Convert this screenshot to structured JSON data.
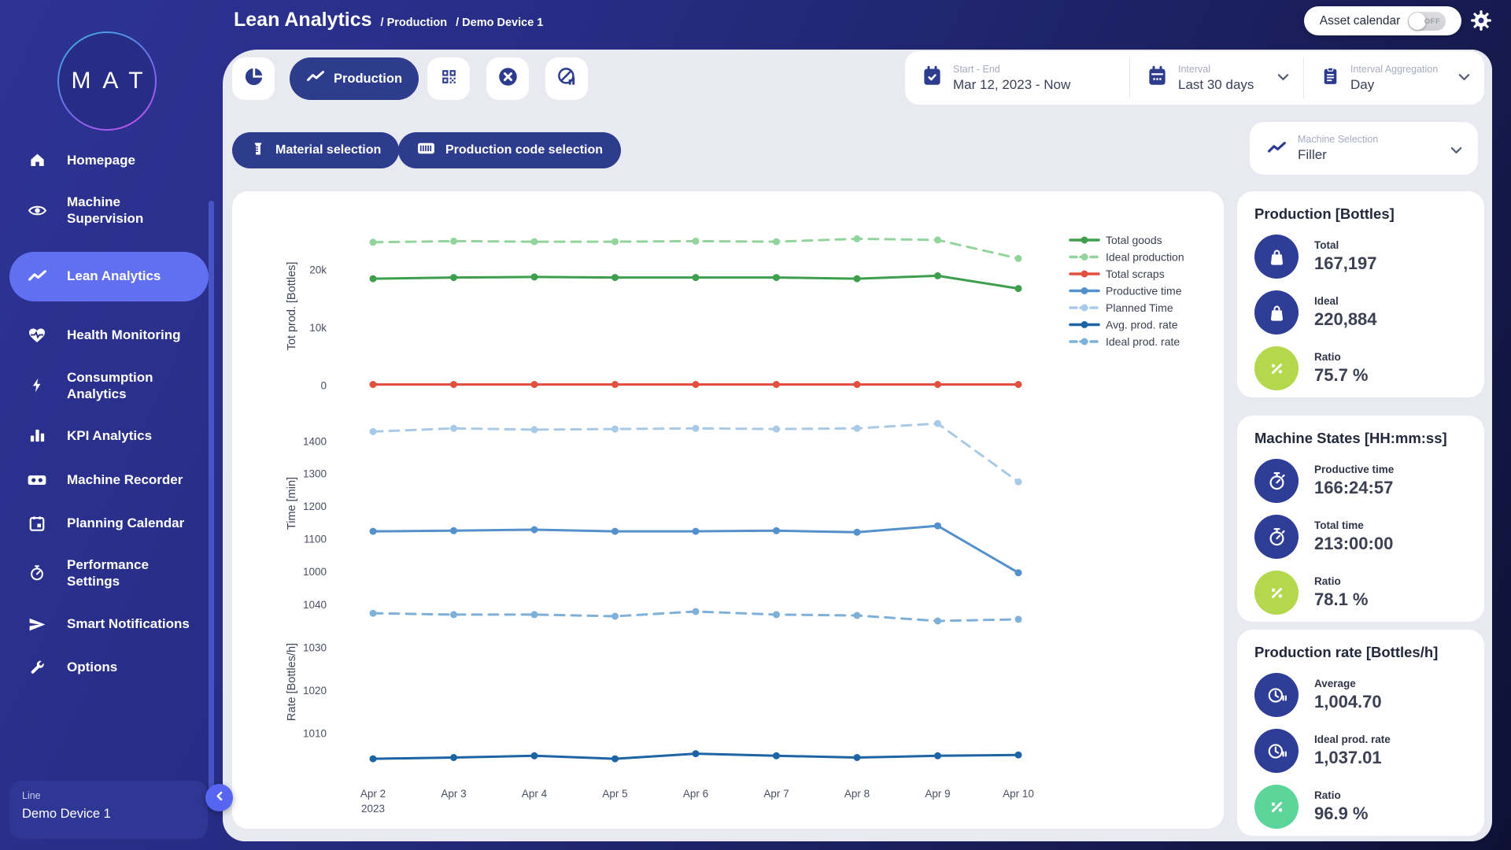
{
  "logo": {
    "text": "MAT"
  },
  "header": {
    "title": "Lean Analytics",
    "breadcrumbs": [
      "/ Production",
      "/ Demo Device 1"
    ],
    "asset_calendar": {
      "label": "Asset calendar",
      "state": "OFF"
    },
    "settings_icon": "gear"
  },
  "sidebar": {
    "items": [
      {
        "label": "Homepage",
        "icon": "home"
      },
      {
        "label": "Machine Supervision",
        "icon": "eye"
      },
      {
        "label": "Lean Analytics",
        "icon": "trend-line",
        "active": true
      },
      {
        "label": "Health Monitoring",
        "icon": "heart-pulse"
      },
      {
        "label": "Consumption Analytics",
        "icon": "bolt"
      },
      {
        "label": "KPI Analytics",
        "icon": "bar-chart"
      },
      {
        "label": "Machine Recorder",
        "icon": "recorder"
      },
      {
        "label": "Planning Calendar",
        "icon": "calendar"
      },
      {
        "label": "Performance Settings",
        "icon": "gauge"
      },
      {
        "label": "Smart Notifications",
        "icon": "send"
      },
      {
        "label": "Options",
        "icon": "wrench"
      }
    ]
  },
  "device_panel": {
    "label": "Line",
    "value": "Demo Device 1",
    "collapse_icon": "chevron-left"
  },
  "toolbar": {
    "tabs": [
      {
        "icon": "pie-chart"
      },
      {
        "icon": "trend-line-white",
        "label": "Production",
        "active": true
      },
      {
        "icon": "qr-code"
      },
      {
        "icon": "close-circle"
      },
      {
        "icon": "no-stats"
      }
    ]
  },
  "date_controls": [
    {
      "icon": "calendar-check",
      "label": "Start - End",
      "value": "Mar 12, 2023 - Now"
    },
    {
      "icon": "calendar-plain",
      "label": "Interval",
      "value": "Last 30 days",
      "chevron_icon": "chevron-down"
    },
    {
      "icon": "clipboard",
      "label": "Interval Aggregation",
      "value": "Day",
      "chevron_icon": "chevron-down"
    }
  ],
  "filters": [
    {
      "icon": "material",
      "label": "Material selection"
    },
    {
      "icon": "barcode",
      "label": "Production code selection"
    }
  ],
  "machine_selection": {
    "icon": "trend-line",
    "label": "Machine Selection",
    "value": "Filler",
    "chevron_icon": "chevron-down"
  },
  "right_panel": {
    "cards": [
      {
        "title": "Production [Bottles]",
        "rows": [
          {
            "icon": "bag",
            "label": "Total",
            "value": "167,197",
            "icon_bg": "#2e3d96"
          },
          {
            "icon": "bag",
            "label": "Ideal",
            "value": "220,884",
            "icon_bg": "#2e3d96"
          },
          {
            "icon": "percent",
            "label": "Ratio",
            "value": "75.7 %",
            "icon_bg": "#b3d84c"
          }
        ]
      },
      {
        "title": "Machine States [HH:mm:ss]",
        "rows": [
          {
            "icon": "stopwatch",
            "label": "Productive time",
            "value": "166:24:57",
            "icon_bg": "#2e3d96"
          },
          {
            "icon": "stopwatch",
            "label": "Total time",
            "value": "213:00:00",
            "icon_bg": "#2e3d96"
          },
          {
            "icon": "percent",
            "label": "Ratio",
            "value": "78.1 %",
            "icon_bg": "#b3d84c"
          }
        ]
      },
      {
        "title": "Production rate [Bottles/h]",
        "rows": [
          {
            "icon": "clock-pause",
            "label": "Average",
            "value": "1,004.70",
            "icon_bg": "#2e3d96"
          },
          {
            "icon": "clock-pause",
            "label": "Ideal prod. rate",
            "value": "1,037.01",
            "icon_bg": "#2e3d96"
          },
          {
            "icon": "percent",
            "label": "Ratio",
            "value": "96.9 %",
            "icon_bg": "#5cd59b"
          }
        ]
      }
    ]
  },
  "chart_data": {
    "type": "line",
    "categories": [
      "Apr 2",
      "Apr 3",
      "Apr 4",
      "Apr 5",
      "Apr 6",
      "Apr 7",
      "Apr 8",
      "Apr 9",
      "Apr 10"
    ],
    "x_sublabel": {
      "index": 0,
      "text": "2023"
    },
    "grid": false,
    "legend_position": "right",
    "legend": [
      {
        "label": "Total goods",
        "color": "#3d9e4e",
        "dash": false
      },
      {
        "label": "Ideal production",
        "color": "#93d39e",
        "dash": true
      },
      {
        "label": "Total scraps",
        "color": "#e2503f",
        "dash": false
      },
      {
        "label": "Productive time",
        "color": "#5491cc",
        "dash": false
      },
      {
        "label": "Planned Time",
        "color": "#a9cae6",
        "dash": true
      },
      {
        "label": "Avg. prod. rate",
        "color": "#1d64a5",
        "dash": false
      },
      {
        "label": "Ideal prod. rate",
        "color": "#7fb0d8",
        "dash": true
      }
    ],
    "charts": [
      {
        "ylabel": "Tot prod. [Bottles]",
        "ylim": [
          0,
          27500
        ],
        "yticks": [
          {
            "v": 0,
            "label": "0"
          },
          {
            "v": 10000,
            "label": "10k"
          },
          {
            "v": 20000,
            "label": "20k"
          }
        ],
        "series": [
          {
            "name": "Ideal production",
            "color": "#93d39e",
            "dash": true,
            "values": [
              24800,
              25000,
              24900,
              24900,
              25000,
              24900,
              25400,
              25200,
              22000
            ]
          },
          {
            "name": "Total goods",
            "color": "#3d9e4e",
            "dash": false,
            "values": [
              18500,
              18700,
              18800,
              18700,
              18700,
              18700,
              18500,
              19000,
              16800
            ]
          },
          {
            "name": "Total scraps",
            "color": "#e2503f",
            "dash": false,
            "values": [
              200,
              200,
              200,
              200,
              200,
              200,
              200,
              200,
              200
            ]
          }
        ]
      },
      {
        "ylabel": "Time [min]",
        "ylim": [
          960,
          1460
        ],
        "yticks": [
          {
            "v": 1000,
            "label": "1000"
          },
          {
            "v": 1100,
            "label": "1100"
          },
          {
            "v": 1200,
            "label": "1200"
          },
          {
            "v": 1300,
            "label": "1300"
          },
          {
            "v": 1400,
            "label": "1400"
          }
        ],
        "series": [
          {
            "name": "Planned Time",
            "color": "#a9cae6",
            "dash": true,
            "values": [
              1430,
              1440,
              1436,
              1438,
              1440,
              1438,
              1440,
              1455,
              1276
            ]
          },
          {
            "name": "Productive time",
            "color": "#5491cc",
            "dash": false,
            "values": [
              1124,
              1126,
              1129,
              1124,
              1124,
              1126,
              1121,
              1141,
              997
            ]
          }
        ]
      },
      {
        "ylabel": "Rate [Bottles/h]",
        "ylim": [
          1000,
          1044
        ],
        "yticks": [
          {
            "v": 1010,
            "label": "1010"
          },
          {
            "v": 1020,
            "label": "1020"
          },
          {
            "v": 1030,
            "label": "1030"
          },
          {
            "v": 1040,
            "label": "1040"
          }
        ],
        "series": [
          {
            "name": "Ideal prod. rate",
            "color": "#7fb0d8",
            "dash": true,
            "values": [
              1038,
              1037.7,
              1037.7,
              1037.3,
              1038.4,
              1037.7,
              1037.5,
              1036.2,
              1036.6
            ]
          },
          {
            "name": "Avg. prod. rate",
            "color": "#1d64a5",
            "dash": false,
            "values": [
              1004.1,
              1004.4,
              1004.8,
              1004.1,
              1005.3,
              1004.8,
              1004.4,
              1004.8,
              1005.0
            ]
          }
        ]
      }
    ]
  }
}
